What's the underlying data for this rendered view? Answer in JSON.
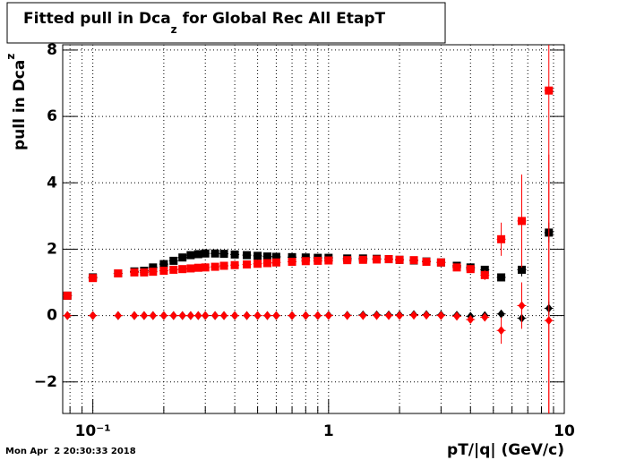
{
  "chart_data": {
    "type": "scatter",
    "title": {
      "main": "Fitted pull in Dca",
      "sub": "z",
      "rest": " for Global Rec All EtapT"
    },
    "y_label": {
      "main": "pull in Dca",
      "sub": "z"
    },
    "x_label": "pT/|q| (GeV/c)",
    "timestamp": "Mon Apr  2 20:30:33 2018",
    "log_x": true,
    "grid": true,
    "xlim": [
      0.0745,
      10
    ],
    "ylim": [
      -2.95,
      8.16
    ],
    "xticks": [
      {
        "value": 0.1,
        "label": "10⁻¹"
      },
      1,
      10
    ],
    "xminorticks": [
      0.08,
      0.09,
      0.2,
      0.3,
      0.4,
      0.5,
      0.6,
      0.7,
      0.8,
      0.9,
      2,
      3,
      4,
      5,
      6,
      7,
      8,
      9
    ],
    "yticks": [
      {
        "value": -2,
        "label": "−2"
      },
      0,
      2,
      4,
      6,
      8
    ],
    "x": [
      0.078,
      0.1,
      0.128,
      0.15,
      0.165,
      0.18,
      0.2,
      0.22,
      0.24,
      0.26,
      0.28,
      0.3,
      0.33,
      0.36,
      0.4,
      0.45,
      0.5,
      0.55,
      0.6,
      0.7,
      0.8,
      0.9,
      1.0,
      1.2,
      1.4,
      1.6,
      1.8,
      2.0,
      2.3,
      2.6,
      3.0,
      3.5,
      4.0,
      4.6,
      5.4,
      6.6,
      8.6
    ],
    "series": [
      {
        "color": "#000000",
        "marker": "square",
        "values": [
          0.6,
          1.15,
          1.27,
          1.33,
          1.35,
          1.45,
          1.55,
          1.65,
          1.75,
          1.82,
          1.85,
          1.87,
          1.87,
          1.86,
          1.84,
          1.82,
          1.8,
          1.78,
          1.77,
          1.76,
          1.75,
          1.74,
          1.74,
          1.72,
          1.72,
          1.71,
          1.7,
          1.68,
          1.66,
          1.63,
          1.6,
          1.5,
          1.45,
          1.38,
          1.15,
          1.38,
          2.5
        ],
        "errors": [
          0,
          0,
          0,
          0,
          0,
          0,
          0,
          0,
          0,
          0,
          0,
          0,
          0,
          0,
          0,
          0,
          0,
          0,
          0,
          0,
          0,
          0,
          0,
          0,
          0,
          0,
          0,
          0,
          0,
          0,
          0,
          0,
          0.05,
          0.08,
          0.1,
          0.2,
          0.3
        ]
      },
      {
        "color": "#ff0000",
        "marker": "square",
        "values": [
          0.6,
          1.13,
          1.27,
          1.3,
          1.3,
          1.32,
          1.35,
          1.38,
          1.4,
          1.42,
          1.44,
          1.45,
          1.47,
          1.5,
          1.52,
          1.54,
          1.56,
          1.58,
          1.6,
          1.62,
          1.64,
          1.65,
          1.66,
          1.67,
          1.68,
          1.69,
          1.7,
          1.68,
          1.67,
          1.62,
          1.6,
          1.45,
          1.4,
          1.22,
          2.3,
          2.85,
          6.78
        ],
        "errors": [
          0,
          0,
          0,
          0,
          0,
          0,
          0,
          0,
          0,
          0,
          0,
          0,
          0,
          0,
          0,
          0,
          0,
          0,
          0,
          0,
          0,
          0,
          0,
          0,
          0,
          0,
          0,
          0,
          0,
          0,
          0,
          0,
          0.1,
          0.15,
          0.5,
          1.4,
          10
        ]
      },
      {
        "color": "#000000",
        "marker": "diamond",
        "values": [
          0,
          0,
          0,
          0,
          0,
          0,
          0,
          0,
          0,
          0,
          0,
          0,
          0,
          0,
          0,
          0,
          0,
          0,
          0,
          0,
          0,
          0,
          0.01,
          0.01,
          0.02,
          0.02,
          0.02,
          0.02,
          0.03,
          0.03,
          0.02,
          0.01,
          -0.02,
          0,
          0.05,
          -0.08,
          0.22
        ],
        "errors": [
          0,
          0,
          0,
          0,
          0,
          0,
          0,
          0,
          0,
          0,
          0,
          0,
          0,
          0,
          0,
          0,
          0,
          0,
          0,
          0,
          0,
          0,
          0,
          0,
          0,
          0,
          0,
          0,
          0,
          0,
          0,
          0,
          0.03,
          0.04,
          0.06,
          0.1,
          0.2
        ]
      },
      {
        "color": "#ff0000",
        "marker": "diamond",
        "values": [
          0,
          0,
          0,
          0,
          0,
          0,
          0,
          0,
          0,
          0,
          0,
          0,
          0,
          0,
          0,
          0,
          0,
          0,
          0,
          0,
          0,
          0,
          0,
          0,
          0,
          0,
          0,
          0,
          0.01,
          0.01,
          0,
          -0.02,
          -0.12,
          -0.05,
          -0.45,
          0.3,
          -0.15
        ],
        "errors": [
          0,
          0,
          0,
          0,
          0,
          0,
          0,
          0,
          0,
          0,
          0,
          0,
          0,
          0,
          0,
          0,
          0,
          0,
          0,
          0,
          0,
          0,
          0,
          0,
          0,
          0,
          0,
          0,
          0,
          0,
          0,
          0,
          0.05,
          0.08,
          0.4,
          0.7,
          5
        ]
      }
    ]
  }
}
